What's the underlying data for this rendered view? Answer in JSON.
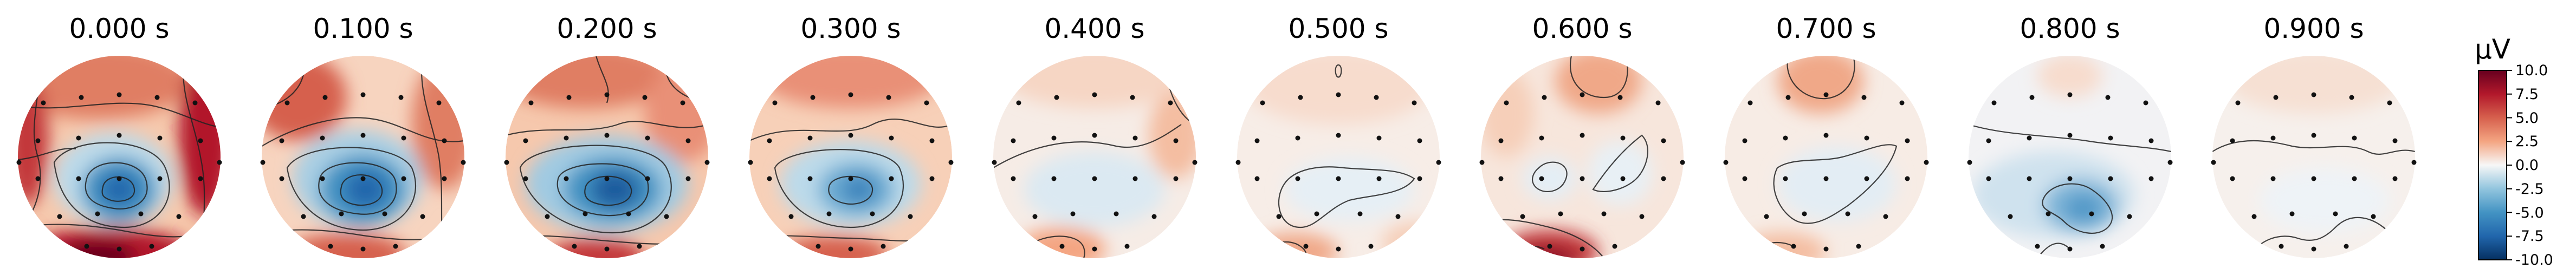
{
  "figure": {
    "topomaps": [
      {
        "title": "0.000 s"
      },
      {
        "title": "0.100 s"
      },
      {
        "title": "0.200 s"
      },
      {
        "title": "0.300 s"
      },
      {
        "title": "0.400 s"
      },
      {
        "title": "0.500 s"
      },
      {
        "title": "0.600 s"
      },
      {
        "title": "0.700 s"
      },
      {
        "title": "0.800 s"
      },
      {
        "title": "0.900 s"
      }
    ],
    "colorbar": {
      "unit": "µV",
      "ticks": [
        "10.0",
        "7.5",
        "5.0",
        "2.5",
        "0.0",
        "-2.5",
        "-5.0",
        "-7.5",
        "-10.0"
      ],
      "vmin": -10.0,
      "vmax": 10.0,
      "colormap": "RdBu_r",
      "colors": [
        "#053061",
        "#2166ac",
        "#4393c3",
        "#92c5de",
        "#f7f7f7",
        "#f4a582",
        "#d6604d",
        "#b2182b",
        "#67001f"
      ]
    }
  }
}
